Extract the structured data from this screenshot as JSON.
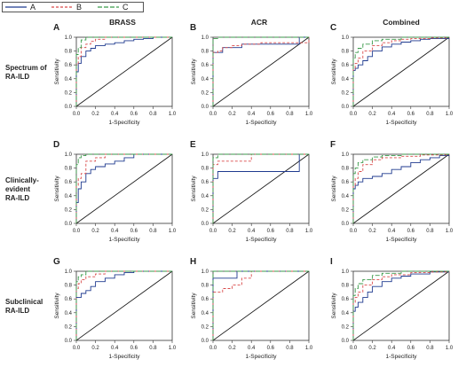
{
  "legend": [
    {
      "name": "A",
      "color": "#1f3a8f",
      "dash": ""
    },
    {
      "name": "B",
      "color": "#d94a4a",
      "dash": "3,2"
    },
    {
      "name": "C",
      "color": "#3a9a4a",
      "dash": "5,2"
    }
  ],
  "column_titles": [
    "BRASS",
    "ACR",
    "Combined"
  ],
  "row_labels": [
    [
      "Spectrum of",
      "RA-ILD"
    ],
    [
      "Clinically-",
      "evident",
      "RA-ILD"
    ],
    [
      "Subclinical",
      "RA-ILD"
    ]
  ],
  "chart_data": [
    {
      "panel": "A",
      "type": "line",
      "xlabel": "1-Specificity",
      "ylabel": "Sensitivity",
      "xlim": [
        0,
        1
      ],
      "ylim": [
        0,
        1
      ],
      "ticks": [
        "0.0",
        "0.2",
        "0.4",
        "0.6",
        "0.8",
        "1.0"
      ],
      "series": [
        {
          "name": "A",
          "x": [
            0,
            0,
            0.02,
            0.02,
            0.05,
            0.05,
            0.1,
            0.1,
            0.15,
            0.2,
            0.3,
            0.4,
            0.5,
            0.6,
            0.7,
            0.8,
            1
          ],
          "y": [
            0,
            0.5,
            0.5,
            0.62,
            0.62,
            0.72,
            0.75,
            0.8,
            0.84,
            0.88,
            0.9,
            0.92,
            0.95,
            0.97,
            0.98,
            1,
            1
          ]
        },
        {
          "name": "B",
          "x": [
            0,
            0,
            0.02,
            0.05,
            0.05,
            0.1,
            0.15,
            0.2,
            0.3,
            0.5,
            1
          ],
          "y": [
            0,
            0.6,
            0.72,
            0.78,
            0.85,
            0.9,
            0.94,
            0.97,
            1,
            1,
            1
          ]
        },
        {
          "name": "C",
          "x": [
            0,
            0,
            0.02,
            0.05,
            0.05,
            0.1,
            0.2,
            1
          ],
          "y": [
            0,
            0.75,
            0.85,
            0.88,
            0.96,
            1,
            1,
            1
          ]
        }
      ]
    },
    {
      "panel": "B",
      "type": "line",
      "xlabel": "1-Specificity",
      "ylabel": "Sensitivity",
      "xlim": [
        0,
        1
      ],
      "ylim": [
        0,
        1
      ],
      "ticks": [
        "0.0",
        "0.2",
        "0.4",
        "0.6",
        "0.8",
        "1.0"
      ],
      "series": [
        {
          "name": "A",
          "x": [
            0,
            0,
            0.1,
            0.1,
            0.3,
            0.9,
            0.9,
            1
          ],
          "y": [
            0,
            0.78,
            0.78,
            0.85,
            0.9,
            0.9,
            1,
            1
          ]
        },
        {
          "name": "B",
          "x": [
            0,
            0,
            0.05,
            0.1,
            0.2,
            0.3,
            0.5,
            1
          ],
          "y": [
            0,
            0.78,
            0.8,
            0.85,
            0.88,
            0.9,
            0.92,
            1
          ]
        },
        {
          "name": "C",
          "x": [
            0,
            0,
            0.05,
            1
          ],
          "y": [
            0,
            0.98,
            1,
            1
          ]
        }
      ]
    },
    {
      "panel": "C",
      "type": "line",
      "xlabel": "1-Specificity",
      "ylabel": "Sensitivity",
      "xlim": [
        0,
        1
      ],
      "ylim": [
        0,
        1
      ],
      "ticks": [
        "0.0",
        "0.2",
        "0.4",
        "0.6",
        "0.8",
        "1.0"
      ],
      "series": [
        {
          "name": "A",
          "x": [
            0,
            0,
            0.02,
            0.05,
            0.1,
            0.15,
            0.2,
            0.3,
            0.4,
            0.5,
            0.6,
            0.7,
            0.8,
            1
          ],
          "y": [
            0,
            0.52,
            0.55,
            0.6,
            0.66,
            0.72,
            0.8,
            0.86,
            0.9,
            0.93,
            0.95,
            0.97,
            0.98,
            1
          ]
        },
        {
          "name": "B",
          "x": [
            0,
            0,
            0.02,
            0.05,
            0.1,
            0.2,
            0.3,
            0.4,
            0.5,
            0.6,
            0.8,
            1
          ],
          "y": [
            0,
            0.55,
            0.62,
            0.7,
            0.8,
            0.88,
            0.92,
            0.95,
            0.97,
            0.98,
            0.99,
            1
          ]
        },
        {
          "name": "C",
          "x": [
            0,
            0,
            0.02,
            0.05,
            0.1,
            0.2,
            0.3,
            0.5,
            1
          ],
          "y": [
            0,
            0.7,
            0.78,
            0.84,
            0.9,
            0.95,
            0.97,
            1,
            1
          ]
        }
      ]
    },
    {
      "panel": "D",
      "type": "line",
      "xlabel": "1-Specificity",
      "ylabel": "Sensitivity",
      "xlim": [
        0,
        1
      ],
      "ylim": [
        0,
        1
      ],
      "ticks": [
        "0.0",
        "0.2",
        "0.4",
        "0.6",
        "0.8",
        "1.0"
      ],
      "series": [
        {
          "name": "A",
          "x": [
            0,
            0,
            0.02,
            0.02,
            0.05,
            0.05,
            0.1,
            0.15,
            0.2,
            0.3,
            0.4,
            0.5,
            0.6,
            0.8,
            1
          ],
          "y": [
            0,
            0.3,
            0.3,
            0.5,
            0.5,
            0.6,
            0.72,
            0.78,
            0.82,
            0.86,
            0.9,
            0.95,
            1,
            1,
            1
          ]
        },
        {
          "name": "B",
          "x": [
            0,
            0,
            0.02,
            0.05,
            0.1,
            0.1,
            0.2,
            0.3,
            1
          ],
          "y": [
            0,
            0.55,
            0.65,
            0.72,
            0.8,
            0.9,
            0.95,
            1,
            1
          ]
        },
        {
          "name": "C",
          "x": [
            0,
            0,
            0.02,
            0.05,
            0.1,
            1
          ],
          "y": [
            0,
            0.85,
            0.95,
            0.98,
            1,
            1
          ]
        }
      ]
    },
    {
      "panel": "E",
      "type": "line",
      "xlabel": "1-Specificity",
      "ylabel": "Sensitivity",
      "xlim": [
        0,
        1
      ],
      "ylim": [
        0,
        1
      ],
      "ticks": [
        "0.0",
        "0.2",
        "0.4",
        "0.6",
        "0.8",
        "1.0"
      ],
      "series": [
        {
          "name": "A",
          "x": [
            0,
            0,
            0.05,
            0.05,
            0.9,
            0.9,
            1
          ],
          "y": [
            0,
            0.65,
            0.65,
            0.75,
            0.75,
            1,
            1
          ]
        },
        {
          "name": "B",
          "x": [
            0,
            0,
            0.05,
            0.4,
            0.4,
            1
          ],
          "y": [
            0,
            0.85,
            0.9,
            0.9,
            1,
            1
          ]
        },
        {
          "name": "C",
          "x": [
            0,
            0,
            0.05,
            1
          ],
          "y": [
            0,
            0.95,
            1,
            1
          ]
        }
      ]
    },
    {
      "panel": "F",
      "type": "line",
      "xlabel": "1-Specificity",
      "ylabel": "Sensitivity",
      "xlim": [
        0,
        1
      ],
      "ylim": [
        0,
        1
      ],
      "ticks": [
        "0.0",
        "0.2",
        "0.4",
        "0.6",
        "0.8",
        "1.0"
      ],
      "series": [
        {
          "name": "A",
          "x": [
            0,
            0,
            0.02,
            0.05,
            0.1,
            0.2,
            0.3,
            0.4,
            0.5,
            0.6,
            0.7,
            0.8,
            0.9,
            1
          ],
          "y": [
            0,
            0.5,
            0.55,
            0.6,
            0.65,
            0.68,
            0.72,
            0.78,
            0.82,
            0.88,
            0.92,
            0.95,
            0.98,
            1
          ]
        },
        {
          "name": "B",
          "x": [
            0,
            0,
            0.02,
            0.05,
            0.1,
            0.2,
            0.3,
            0.5,
            0.7,
            1
          ],
          "y": [
            0,
            0.55,
            0.65,
            0.75,
            0.85,
            0.92,
            0.95,
            0.97,
            0.99,
            1
          ]
        },
        {
          "name": "C",
          "x": [
            0,
            0,
            0.02,
            0.05,
            0.1,
            0.2,
            0.3,
            0.5,
            1
          ],
          "y": [
            0,
            0.72,
            0.8,
            0.88,
            0.92,
            0.96,
            0.98,
            1,
            1
          ]
        }
      ]
    },
    {
      "panel": "G",
      "type": "line",
      "xlabel": "1-Specificity",
      "ylabel": "Sensitivity",
      "xlim": [
        0,
        1
      ],
      "ylim": [
        0,
        1
      ],
      "ticks": [
        "0.0",
        "0.2",
        "0.4",
        "0.6",
        "0.8",
        "1.0"
      ],
      "series": [
        {
          "name": "A",
          "x": [
            0,
            0,
            0.05,
            0.05,
            0.1,
            0.15,
            0.2,
            0.3,
            0.4,
            0.5,
            0.6,
            1
          ],
          "y": [
            0,
            0.62,
            0.62,
            0.68,
            0.72,
            0.78,
            0.85,
            0.9,
            0.95,
            0.98,
            1,
            1
          ]
        },
        {
          "name": "B",
          "x": [
            0,
            0,
            0.02,
            0.05,
            0.1,
            0.2,
            0.3,
            1
          ],
          "y": [
            0,
            0.75,
            0.82,
            0.88,
            0.92,
            0.96,
            1,
            1
          ]
        },
        {
          "name": "C",
          "x": [
            0,
            0,
            0.02,
            0.05,
            0.1,
            1
          ],
          "y": [
            0,
            0.85,
            0.92,
            0.95,
            1,
            1
          ]
        }
      ]
    },
    {
      "panel": "H",
      "type": "line",
      "xlabel": "1-Specificity",
      "ylabel": "Sensitivity",
      "xlim": [
        0,
        1
      ],
      "ylim": [
        0,
        1
      ],
      "ticks": [
        "0.0",
        "0.2",
        "0.4",
        "0.6",
        "0.8",
        "1.0"
      ],
      "series": [
        {
          "name": "A",
          "x": [
            0,
            0,
            0.25,
            0.25,
            1
          ],
          "y": [
            0,
            0.9,
            0.9,
            1,
            1
          ]
        },
        {
          "name": "B",
          "x": [
            0,
            0,
            0.1,
            0.2,
            0.3,
            0.3,
            0.4,
            0.4,
            1
          ],
          "y": [
            0,
            0.7,
            0.75,
            0.8,
            0.82,
            0.9,
            0.9,
            1,
            1
          ]
        },
        {
          "name": "C",
          "x": [
            0,
            0,
            1
          ],
          "y": [
            0,
            1,
            1
          ]
        }
      ]
    },
    {
      "panel": "I",
      "type": "line",
      "xlabel": "1-Specificity",
      "ylabel": "Sensitivity",
      "xlim": [
        0,
        1
      ],
      "ylim": [
        0,
        1
      ],
      "ticks": [
        "0.0",
        "0.2",
        "0.4",
        "0.6",
        "0.8",
        "1.0"
      ],
      "series": [
        {
          "name": "A",
          "x": [
            0,
            0,
            0.02,
            0.05,
            0.1,
            0.15,
            0.2,
            0.3,
            0.4,
            0.5,
            0.6,
            0.8,
            1
          ],
          "y": [
            0,
            0.42,
            0.48,
            0.55,
            0.62,
            0.7,
            0.78,
            0.85,
            0.9,
            0.93,
            0.96,
            0.99,
            1
          ]
        },
        {
          "name": "B",
          "x": [
            0,
            0,
            0.02,
            0.05,
            0.1,
            0.2,
            0.3,
            0.4,
            0.6,
            0.8,
            1
          ],
          "y": [
            0,
            0.55,
            0.62,
            0.7,
            0.8,
            0.88,
            0.92,
            0.95,
            0.98,
            0.99,
            1
          ]
        },
        {
          "name": "C",
          "x": [
            0,
            0,
            0.02,
            0.05,
            0.1,
            0.2,
            0.3,
            0.5,
            1
          ],
          "y": [
            0,
            0.65,
            0.75,
            0.82,
            0.88,
            0.94,
            0.97,
            1,
            1
          ]
        }
      ]
    }
  ]
}
